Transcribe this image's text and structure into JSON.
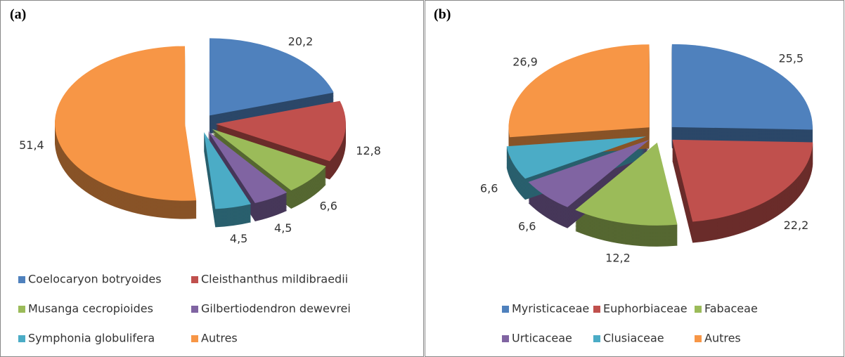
{
  "chart_data": [
    {
      "type": "pie",
      "title": "(a)",
      "categories": [
        "Coelocaryon botryoides",
        "Cleisthanthus mildibraedii",
        "Musanga cecropioides",
        "Gilbertiodendron dewevrei",
        "Symphonia globulifera",
        "Autres"
      ],
      "values": [
        20.2,
        12.8,
        6.6,
        4.5,
        4.5,
        51.4
      ],
      "value_labels": [
        "20,2",
        "12,8",
        "6,6",
        "4,5",
        "4,5",
        "51,4"
      ],
      "colors": [
        "#4f81bd",
        "#c0504d",
        "#9bbb59",
        "#8064a2",
        "#4bacc6",
        "#f79646"
      ]
    },
    {
      "type": "pie",
      "title": "(b)",
      "categories": [
        "Myristicaceae",
        "Euphorbiaceae",
        "Fabaceae",
        "Urticaceae",
        "Clusiaceae",
        "Autres"
      ],
      "values": [
        25.5,
        22.2,
        12.2,
        6.6,
        6.6,
        26.9
      ],
      "value_labels": [
        "25,5",
        "22,2",
        "12,2",
        "6,6",
        "6,6",
        "26,9"
      ],
      "colors": [
        "#4f81bd",
        "#c0504d",
        "#9bbb59",
        "#8064a2",
        "#4bacc6",
        "#f79646"
      ]
    }
  ]
}
